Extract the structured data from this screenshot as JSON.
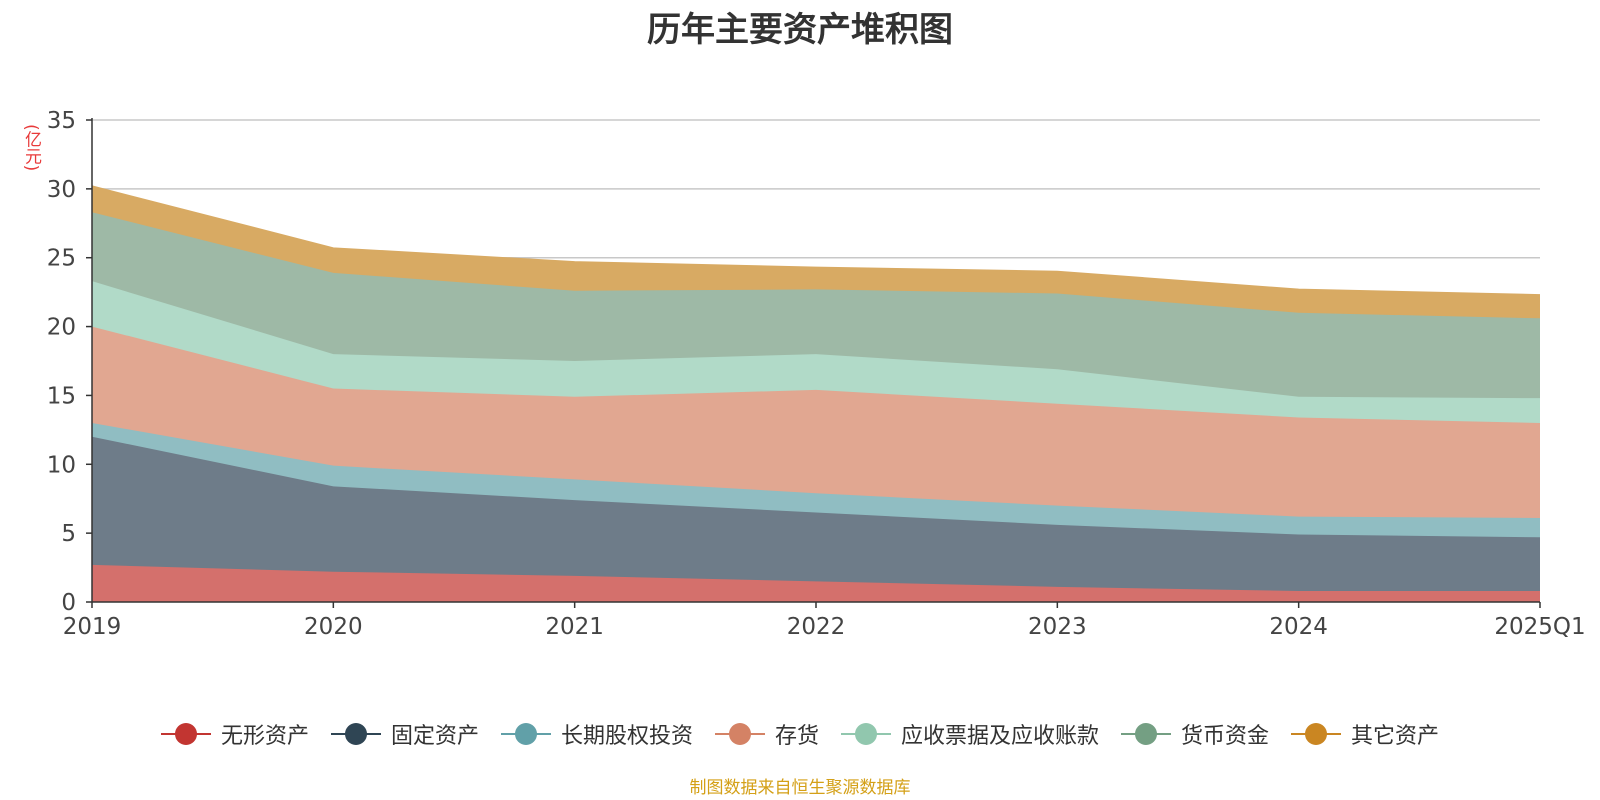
{
  "chart_data": {
    "type": "area",
    "stacked": true,
    "title": "历年主要资产堆积图",
    "unit_label": "(亿元)",
    "source_note": "制图数据来自恒生聚源数据库",
    "xlabel": "",
    "ylabel": "(亿元)",
    "ylim": [
      0,
      35
    ],
    "yticks": [
      0,
      5,
      10,
      15,
      20,
      25,
      30,
      35
    ],
    "categories": [
      "2019",
      "2020",
      "2021",
      "2022",
      "2023",
      "2024",
      "2025Q1"
    ],
    "grid": true,
    "legend_position": "bottom",
    "series": [
      {
        "name": "无形资产",
        "color": "#c23531",
        "fill": "#d4706c",
        "values": [
          2.7,
          2.2,
          1.9,
          1.5,
          1.1,
          0.8,
          0.8
        ]
      },
      {
        "name": "固定资产",
        "color": "#2f4554",
        "fill": "#6e7c89",
        "values": [
          9.3,
          6.2,
          5.5,
          5.0,
          4.5,
          4.1,
          3.9
        ]
      },
      {
        "name": "长期股权投资",
        "color": "#61a0a8",
        "fill": "#90bdc2",
        "values": [
          1.0,
          1.5,
          1.5,
          1.4,
          1.4,
          1.3,
          1.4
        ]
      },
      {
        "name": "存货",
        "color": "#d48265",
        "fill": "#e1a791",
        "values": [
          7.0,
          5.6,
          6.0,
          7.5,
          7.4,
          7.2,
          6.9
        ]
      },
      {
        "name": "应收票据及应收账款",
        "color": "#91c7ae",
        "fill": "#b1dac8",
        "values": [
          3.3,
          2.5,
          2.6,
          2.6,
          2.5,
          1.5,
          1.8
        ]
      },
      {
        "name": "货币资金",
        "color": "#749f83",
        "fill": "#9eb9a6",
        "values": [
          5.0,
          5.9,
          5.1,
          4.7,
          5.5,
          6.1,
          5.8
        ]
      },
      {
        "name": "其它资产",
        "color": "#ca8622",
        "fill": "#d8aa63",
        "values": [
          1.9,
          1.8,
          2.1,
          1.6,
          1.6,
          1.7,
          1.7
        ]
      }
    ]
  },
  "colors": {
    "title": "#333333",
    "unit": "#e83a3a",
    "source": "#d4a017",
    "axis": "#333333",
    "grid": "#c8c8c8",
    "tick_label": "#444444"
  }
}
